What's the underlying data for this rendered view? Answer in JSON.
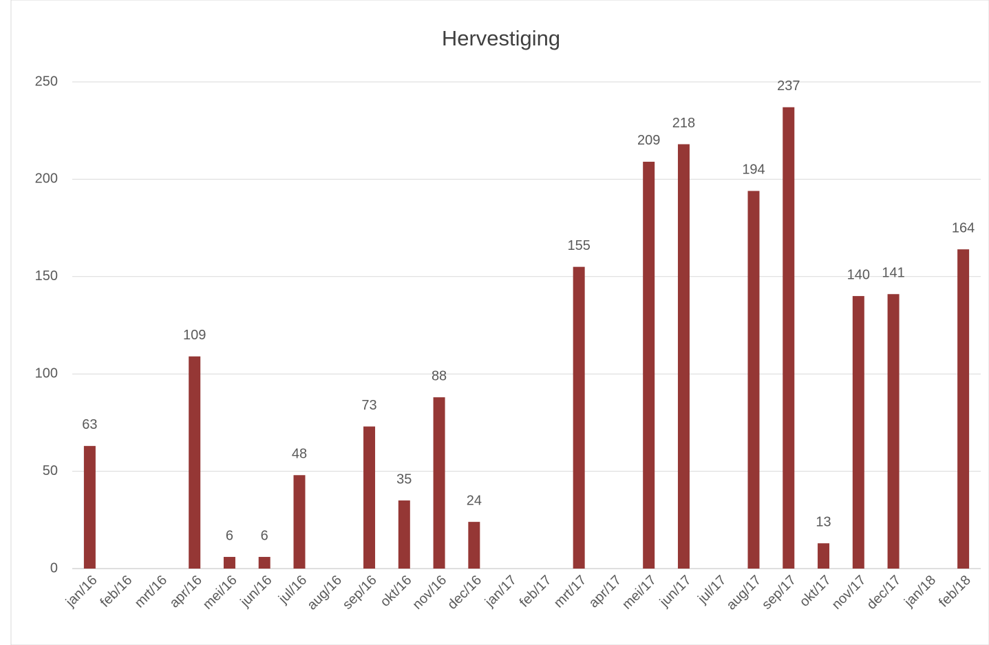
{
  "chart_data": {
    "type": "bar",
    "title": "Hervestiging",
    "categories": [
      "jan/16",
      "feb/16",
      "mrt/16",
      "apr/16",
      "mei/16",
      "jun/16",
      "jul/16",
      "aug/16",
      "sep/16",
      "okt/16",
      "nov/16",
      "dec/16",
      "jan/17",
      "feb/17",
      "mrt/17",
      "apr/17",
      "mei/17",
      "jun/17",
      "jul/17",
      "aug/17",
      "sep/17",
      "okt/17",
      "nov/17",
      "dec/17",
      "jan/18",
      "feb/18"
    ],
    "values": [
      63,
      null,
      null,
      109,
      6,
      6,
      48,
      null,
      73,
      35,
      88,
      24,
      null,
      null,
      155,
      null,
      209,
      218,
      null,
      194,
      237,
      13,
      140,
      141,
      null,
      164
    ],
    "color": "#953735",
    "ylim": [
      0,
      250
    ],
    "yticks": [
      0,
      50,
      100,
      150,
      200,
      250
    ],
    "grid": true
  }
}
